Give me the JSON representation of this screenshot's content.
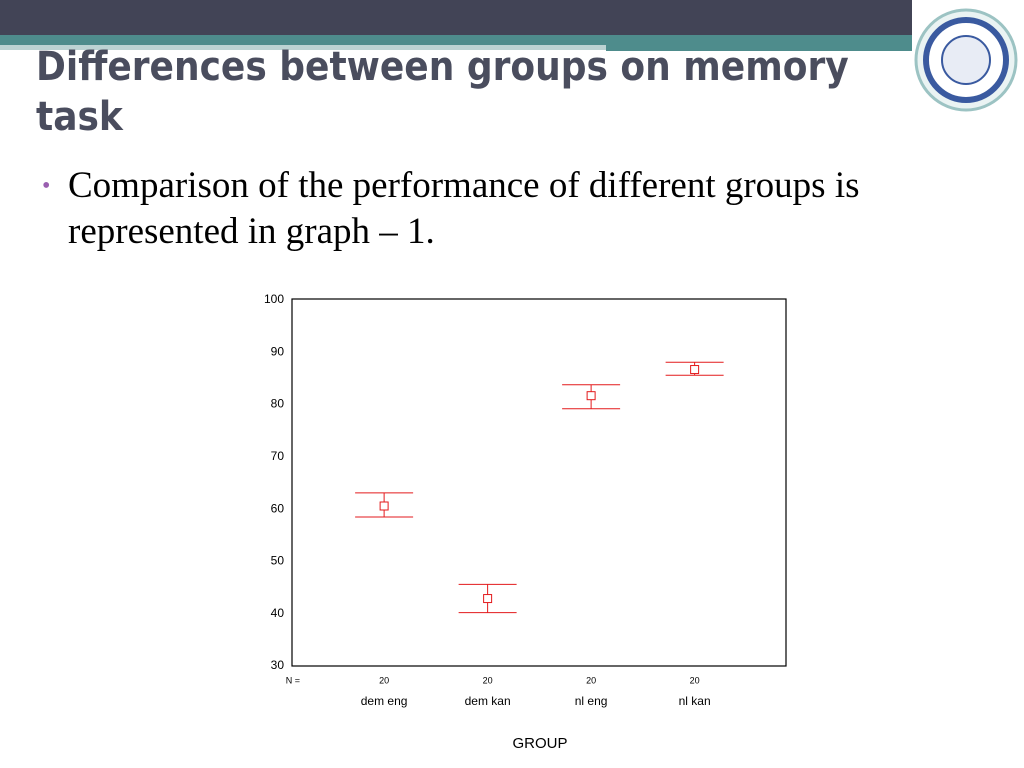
{
  "title": "Differences between groups on memory task",
  "bullet": "Comparison of the performance of different groups is represented in graph – 1.",
  "chart_data": {
    "type": "errorbar",
    "categories": [
      "dem eng",
      "dem kan",
      "nl eng",
      "nl kan"
    ],
    "series": [
      {
        "color": "#e31a1c",
        "values": [
          60.6,
          42.9,
          81.7,
          86.7
        ],
        "lower": [
          58.5,
          40.2,
          79.2,
          85.6
        ],
        "upper": [
          63.1,
          45.6,
          83.8,
          88.1
        ]
      }
    ],
    "ylim": [
      30,
      100
    ],
    "yticks": [
      30,
      40,
      50,
      60,
      70,
      80,
      90,
      100
    ],
    "xlabel": "GROUP",
    "n_label": "N =",
    "n": [
      20,
      20,
      20,
      20
    ]
  }
}
